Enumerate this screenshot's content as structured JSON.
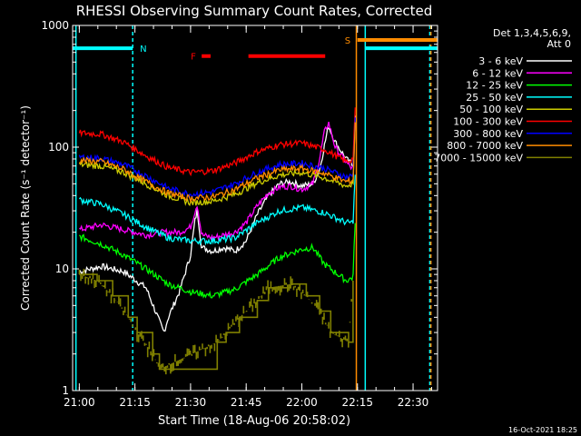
{
  "chart_data": {
    "type": "line",
    "title": "RHESSI Observing Summary Count Rates, Corrected",
    "xlabel": "Start Time (18-Aug-06 20:58:02)",
    "ylabel": "Corrected Count Rate (s⁻¹ detector⁻¹)",
    "y_scale": "log",
    "ylim": [
      1,
      1000
    ],
    "xlim": [
      20.97,
      22.61
    ],
    "y_tick_labels": [
      "1",
      "10",
      "100",
      "1000"
    ],
    "y_tick_values": [
      1,
      10,
      100,
      1000
    ],
    "x_tick_labels": [
      "21:00",
      "21:15",
      "21:30",
      "21:45",
      "22:00",
      "22:15",
      "22:30"
    ],
    "x_tick_values": [
      21.0,
      21.25,
      21.5,
      21.75,
      22.0,
      22.25,
      22.5
    ],
    "legend_title": [
      "Det 1,3,4,5,6,9,",
      "Att 0"
    ],
    "legend_position": "top-right",
    "timestamp": "16-Oct-2021 18:25",
    "annotations": [
      {
        "label": "N",
        "color": "#00ffff"
      },
      {
        "label": "F",
        "color": "#ff0000"
      },
      {
        "label": "S",
        "color": "#ff8c00"
      }
    ],
    "night_bars": [
      {
        "label": "N",
        "color": "#00ffff",
        "x0": 20.97,
        "x1": 21.24,
        "y": 650
      },
      {
        "label": "N",
        "color": "#00ffff",
        "x0": 22.285,
        "x1": 22.61,
        "y": 650
      }
    ],
    "flare_bars": [
      {
        "label": "F",
        "color": "#ff0000",
        "x0": 21.55,
        "x1": 21.59,
        "y": 560
      },
      {
        "label": "F",
        "color": "#ff0000",
        "x0": 21.76,
        "x1": 22.105,
        "y": 560
      }
    ],
    "saa_bars": [
      {
        "label": "S",
        "color": "#ff8c00",
        "x0": 22.25,
        "x1": 22.61,
        "y": 760
      }
    ],
    "vertical_lines": [
      {
        "x": 20.985,
        "color": "#00ffff",
        "style": "solid"
      },
      {
        "x": 21.24,
        "color": "#00ffff",
        "style": "dashed"
      },
      {
        "x": 22.245,
        "color": "#ff8c00",
        "style": "solid"
      },
      {
        "x": 22.285,
        "color": "#00ffff",
        "style": "solid"
      },
      {
        "x": 22.575,
        "color": "#00ffff",
        "style": "dashed"
      },
      {
        "x": 22.58,
        "color": "#ff8c00",
        "style": "dashed"
      }
    ],
    "series": [
      {
        "name": "3 - 6 keV",
        "color": "#ffffff",
        "step": false,
        "points": [
          [
            21.0,
            9.5
          ],
          [
            21.1,
            10.5
          ],
          [
            21.2,
            9.5
          ],
          [
            21.3,
            7
          ],
          [
            21.38,
            3
          ],
          [
            21.4,
            4
          ],
          [
            21.45,
            6.5
          ],
          [
            21.5,
            13
          ],
          [
            21.52,
            25
          ],
          [
            21.53,
            30
          ],
          [
            21.55,
            15
          ],
          [
            21.6,
            14
          ],
          [
            21.65,
            15
          ],
          [
            21.7,
            14
          ],
          [
            21.75,
            17
          ],
          [
            21.8,
            28
          ],
          [
            21.85,
            40
          ],
          [
            21.9,
            50
          ],
          [
            21.95,
            52
          ],
          [
            22.0,
            48
          ],
          [
            22.05,
            50
          ],
          [
            22.08,
            65
          ],
          [
            22.1,
            100
          ],
          [
            22.12,
            150
          ],
          [
            22.15,
            110
          ],
          [
            22.2,
            80
          ],
          [
            22.23,
            70
          ],
          [
            22.24,
            190
          ]
        ]
      },
      {
        "name": "6 - 12 keV",
        "color": "#ff00ff",
        "step": false,
        "points": [
          [
            21.0,
            21
          ],
          [
            21.1,
            23
          ],
          [
            21.2,
            21
          ],
          [
            21.3,
            19
          ],
          [
            21.38,
            20
          ],
          [
            21.45,
            20
          ],
          [
            21.5,
            22
          ],
          [
            21.52,
            30
          ],
          [
            21.53,
            34
          ],
          [
            21.55,
            19
          ],
          [
            21.6,
            18
          ],
          [
            21.65,
            19
          ],
          [
            21.7,
            20
          ],
          [
            21.75,
            24
          ],
          [
            21.8,
            33
          ],
          [
            21.85,
            42
          ],
          [
            21.9,
            47
          ],
          [
            21.95,
            48
          ],
          [
            22.0,
            45
          ],
          [
            22.05,
            50
          ],
          [
            22.08,
            80
          ],
          [
            22.1,
            130
          ],
          [
            22.12,
            160
          ],
          [
            22.15,
            100
          ],
          [
            22.2,
            75
          ],
          [
            22.23,
            65
          ],
          [
            22.24,
            150
          ]
        ]
      },
      {
        "name": "12 - 25 keV",
        "color": "#00ff00",
        "step": false,
        "points": [
          [
            21.0,
            18.5
          ],
          [
            21.1,
            16
          ],
          [
            21.2,
            13
          ],
          [
            21.3,
            10
          ],
          [
            21.4,
            7.5
          ],
          [
            21.5,
            6.5
          ],
          [
            21.6,
            6
          ],
          [
            21.7,
            6.8
          ],
          [
            21.8,
            9
          ],
          [
            21.9,
            12.5
          ],
          [
            22.0,
            14.5
          ],
          [
            22.05,
            15
          ],
          [
            22.1,
            11
          ],
          [
            22.2,
            8
          ],
          [
            22.23,
            8.5
          ],
          [
            22.24,
            25
          ]
        ]
      },
      {
        "name": "25 - 50 keV",
        "color": "#00ffff",
        "step": false,
        "points": [
          [
            21.0,
            37
          ],
          [
            21.1,
            34
          ],
          [
            21.2,
            28
          ],
          [
            21.3,
            22
          ],
          [
            21.4,
            18
          ],
          [
            21.5,
            17
          ],
          [
            21.6,
            17
          ],
          [
            21.7,
            18
          ],
          [
            21.8,
            24
          ],
          [
            21.9,
            30
          ],
          [
            22.0,
            32
          ],
          [
            22.1,
            29
          ],
          [
            22.2,
            24
          ],
          [
            22.23,
            24
          ],
          [
            22.24,
            60
          ]
        ]
      },
      {
        "name": "50 - 100 keV",
        "color": "#cccc00",
        "step": false,
        "points": [
          [
            21.0,
            72
          ],
          [
            21.1,
            70
          ],
          [
            21.2,
            62
          ],
          [
            21.3,
            50
          ],
          [
            21.4,
            40
          ],
          [
            21.5,
            35
          ],
          [
            21.6,
            36
          ],
          [
            21.7,
            41
          ],
          [
            21.8,
            51
          ],
          [
            21.9,
            59
          ],
          [
            22.0,
            62
          ],
          [
            22.1,
            56
          ],
          [
            22.2,
            48
          ],
          [
            22.23,
            50
          ],
          [
            22.24,
            160
          ]
        ]
      },
      {
        "name": "100 - 300 keV",
        "color": "#ff0000",
        "step": false,
        "points": [
          [
            21.0,
            131
          ],
          [
            21.1,
            128
          ],
          [
            21.2,
            110
          ],
          [
            21.3,
            85
          ],
          [
            21.4,
            68
          ],
          [
            21.5,
            62
          ],
          [
            21.6,
            64
          ],
          [
            21.7,
            74
          ],
          [
            21.8,
            92
          ],
          [
            21.9,
            105
          ],
          [
            22.0,
            108
          ],
          [
            22.1,
            96
          ],
          [
            22.2,
            76
          ],
          [
            22.23,
            80
          ],
          [
            22.24,
            200
          ]
        ]
      },
      {
        "name": "300 - 800 keV",
        "color": "#0000ff",
        "step": false,
        "points": [
          [
            21.0,
            83
          ],
          [
            21.1,
            81
          ],
          [
            21.2,
            72
          ],
          [
            21.3,
            58
          ],
          [
            21.4,
            46
          ],
          [
            21.5,
            41
          ],
          [
            21.6,
            43
          ],
          [
            21.7,
            50
          ],
          [
            21.8,
            62
          ],
          [
            21.9,
            72
          ],
          [
            22.0,
            74
          ],
          [
            22.1,
            67
          ],
          [
            22.2,
            57
          ],
          [
            22.23,
            58
          ],
          [
            22.24,
            170
          ]
        ]
      },
      {
        "name": "800 - 7000 keV",
        "color": "#ff8c00",
        "step": false,
        "points": [
          [
            21.0,
            78
          ],
          [
            21.1,
            76
          ],
          [
            21.2,
            66
          ],
          [
            21.3,
            52
          ],
          [
            21.4,
            42
          ],
          [
            21.5,
            38
          ],
          [
            21.6,
            39
          ],
          [
            21.7,
            45
          ],
          [
            21.8,
            56
          ],
          [
            21.9,
            65
          ],
          [
            22.0,
            67
          ],
          [
            22.1,
            61
          ],
          [
            22.2,
            52
          ],
          [
            22.23,
            53
          ],
          [
            22.24,
            160
          ]
        ]
      },
      {
        "name": "7000 - 15000 keV",
        "color": "#808000",
        "step": true,
        "points": [
          [
            21.0,
            9
          ],
          [
            21.08,
            8
          ],
          [
            21.15,
            6
          ],
          [
            21.22,
            4
          ],
          [
            21.26,
            3
          ],
          [
            21.33,
            2
          ],
          [
            21.36,
            1.5
          ],
          [
            21.62,
            2.5
          ],
          [
            21.66,
            3
          ],
          [
            21.72,
            4
          ],
          [
            21.8,
            5.5
          ],
          [
            21.85,
            7
          ],
          [
            21.95,
            7.5
          ],
          [
            22.02,
            6
          ],
          [
            22.08,
            4.5
          ],
          [
            22.13,
            3
          ],
          [
            22.21,
            2.5
          ],
          [
            22.23,
            8
          ]
        ]
      }
    ]
  }
}
